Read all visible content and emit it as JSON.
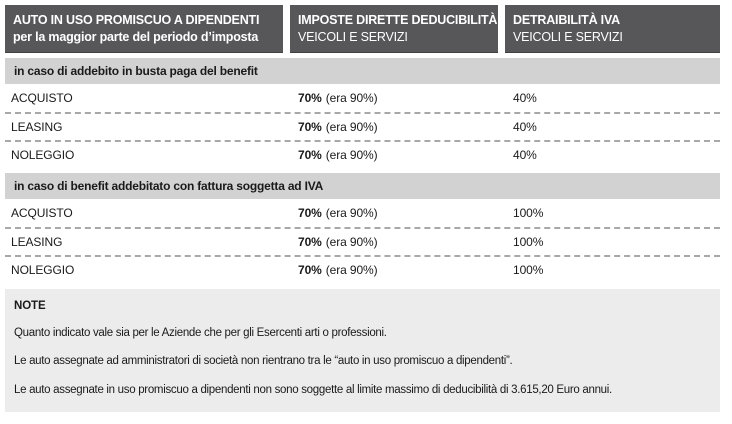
{
  "header": {
    "col1_line1": "AUTO IN USO PROMISCUO A DIPENDENTI",
    "col1_line2": "per la maggior parte del periodo d’imposta",
    "col2_line1": "IMPOSTE DIRETTE DEDUCIBILITÀ",
    "col2_line2": "VEICOLI E SERVIZI",
    "col3_line1": "DETRAIBILITÀ IVA",
    "col3_line2": "VEICOLI E SERVIZI"
  },
  "sections": [
    {
      "title": "in caso di addebito in busta paga del benefit",
      "rows": [
        {
          "label": "ACQUISTO",
          "direct_tax": "70%",
          "direct_tax_note": "(era 90%)",
          "vat": "40%"
        },
        {
          "label": "LEASING",
          "direct_tax": "70%",
          "direct_tax_note": "(era 90%)",
          "vat": "40%"
        },
        {
          "label": "NOLEGGIO",
          "direct_tax": "70%",
          "direct_tax_note": "(era 90%)",
          "vat": "40%"
        }
      ]
    },
    {
      "title": "in caso di benefit addebitato con fattura soggetta ad IVA",
      "rows": [
        {
          "label": "ACQUISTO",
          "direct_tax": "70%",
          "direct_tax_note": "(era 90%)",
          "vat": "100%"
        },
        {
          "label": "LEASING",
          "direct_tax": "70%",
          "direct_tax_note": "(era 90%)",
          "vat": "100%"
        },
        {
          "label": "NOLEGGIO",
          "direct_tax": "70%",
          "direct_tax_note": "(era 90%)",
          "vat": "100%"
        }
      ]
    }
  ],
  "note": {
    "title": "NOTE",
    "items": [
      "Quanto indicato vale sia per le Aziende che per gli Esercenti arti o professioni.",
      "Le auto assegnate ad amministratori di società non rientrano tra le “auto in uso promiscuo a dipendenti”.",
      "Le auto assegnate in uso promiscuo a dipendenti non sono soggette al limite massimo di deducibilità di 3.615,20 Euro annui."
    ]
  },
  "colors": {
    "header_bg": "#575659",
    "header_text": "#ffffff",
    "section_bg": "#d2d2d2",
    "note_bg": "#ececec",
    "row_divider": "#a8a8a8"
  }
}
